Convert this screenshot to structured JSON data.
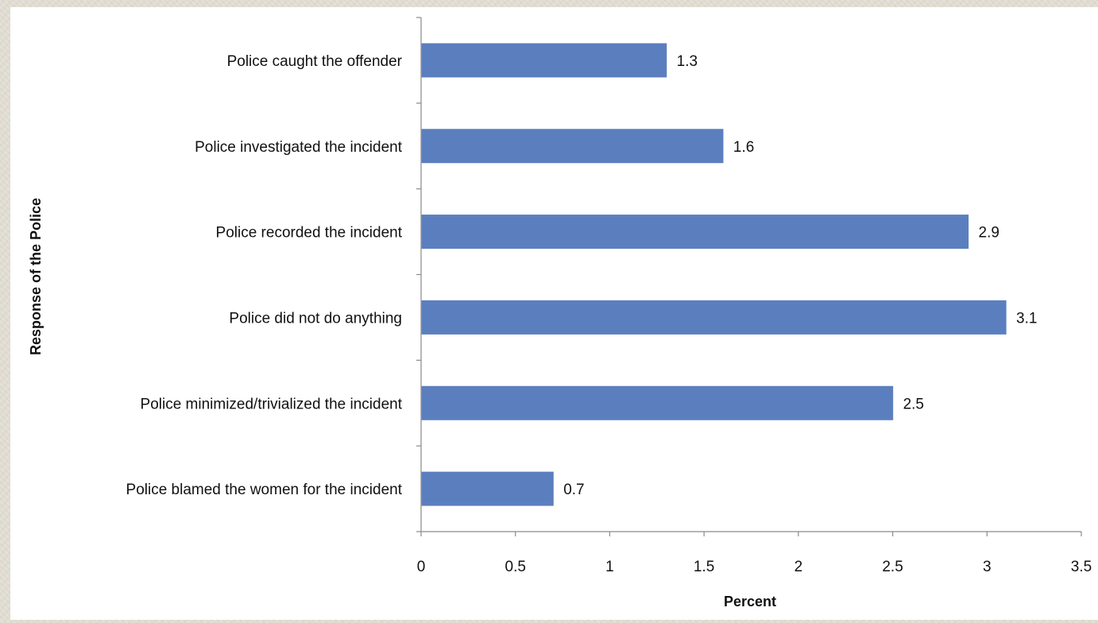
{
  "chart_data": {
    "type": "bar",
    "orientation": "horizontal",
    "categories": [
      "Police caught the offender",
      "Police investigated the incident",
      "Police recorded the incident",
      "Police did not do anything",
      "Police minimized/trivialized the incident",
      "Police blamed the women for the incident"
    ],
    "values": [
      1.3,
      1.6,
      2.9,
      3.1,
      2.5,
      0.7
    ],
    "value_labels": [
      "1.3",
      "1.6",
      "2.9",
      "3.1",
      "2.5",
      "0.7"
    ],
    "xlabel": "Percent",
    "ylabel": "Response of the Police",
    "xlim": [
      0,
      3.5
    ],
    "xticks": [
      0,
      0.5,
      1,
      1.5,
      2,
      2.5,
      3,
      3.5
    ],
    "xtick_labels": [
      "0",
      "0.5",
      "1",
      "1.5",
      "2",
      "2.5",
      "3",
      "3.5"
    ],
    "grid": false,
    "legend": "none",
    "bar_color": "#5b7fbe"
  }
}
